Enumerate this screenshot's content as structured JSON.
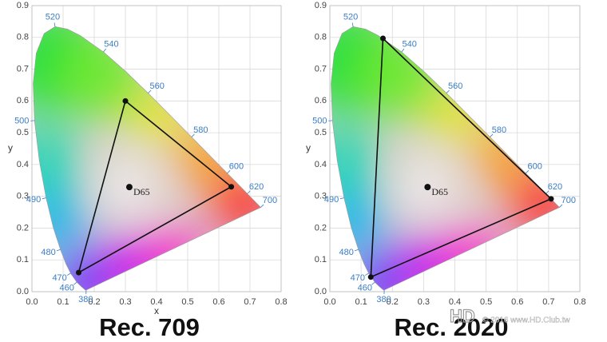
{
  "chart_data": [
    {
      "type": "chromaticity",
      "caption": "Rec. 709",
      "x_label": "x",
      "y_label": "y",
      "xlim": [
        0,
        0.8
      ],
      "ylim": [
        0,
        0.9
      ],
      "xticks": [
        {
          "value": 0,
          "label": "0.0"
        },
        0.1,
        0.2,
        0.3,
        0.4,
        0.5,
        0.6,
        0.7,
        0.8
      ],
      "yticks": [
        {
          "value": 0,
          "label": "0.0"
        },
        0.1,
        0.2,
        0.3,
        0.4,
        0.5,
        0.6,
        0.7,
        0.8,
        0.9
      ],
      "grid": true,
      "locus": {
        "wavelengths": [
          380,
          null,
          null,
          null,
          460,
          470,
          null,
          480,
          null,
          490,
          null,
          500,
          null,
          null,
          null,
          520,
          null,
          null,
          540,
          null,
          560,
          null,
          580,
          null,
          600,
          null,
          620,
          null,
          700
        ],
        "x": [
          0.1741,
          0.1714,
          0.1644,
          0.1566,
          0.144,
          0.1241,
          0.1096,
          0.0913,
          0.0687,
          0.0454,
          0.0235,
          0.0082,
          0.0039,
          0.0139,
          0.0389,
          0.0743,
          0.1142,
          0.1547,
          0.2296,
          0.3016,
          0.3731,
          0.4441,
          0.5125,
          0.5752,
          0.627,
          0.6658,
          0.6915,
          0.719,
          0.7347
        ],
        "y": [
          0.005,
          0.0051,
          0.0109,
          0.0177,
          0.0297,
          0.0578,
          0.0868,
          0.1327,
          0.2007,
          0.295,
          0.4127,
          0.5384,
          0.6548,
          0.7502,
          0.812,
          0.8338,
          0.8262,
          0.8059,
          0.7543,
          0.6923,
          0.6245,
          0.5547,
          0.4866,
          0.4242,
          0.3725,
          0.334,
          0.3083,
          0.2809,
          0.2653
        ]
      },
      "gamut": {
        "x": [
          0.64,
          0.3,
          0.15
        ],
        "y": [
          0.33,
          0.6,
          0.06
        ],
        "color": "#111111"
      },
      "white_point": {
        "label": "D65",
        "x": 0.3127,
        "y": 0.329
      }
    },
    {
      "type": "chromaticity",
      "caption": "Rec. 2020",
      "y_label": "y",
      "xlim": [
        0,
        0.8
      ],
      "ylim": [
        0,
        0.9
      ],
      "xticks": [
        {
          "value": 0,
          "label": "0.0"
        },
        0.1,
        0.2,
        0.3,
        0.4,
        0.5,
        0.6,
        0.7,
        0.8
      ],
      "yticks": [
        {
          "value": 0,
          "label": "0.0"
        },
        0.1,
        0.2,
        0.3,
        0.4,
        0.5,
        0.6,
        0.7,
        0.8,
        0.9
      ],
      "grid": true,
      "locus": {
        "wavelengths": [
          380,
          null,
          null,
          null,
          460,
          470,
          null,
          480,
          null,
          490,
          null,
          500,
          null,
          null,
          null,
          520,
          null,
          null,
          540,
          null,
          560,
          null,
          580,
          null,
          600,
          null,
          620,
          null,
          700
        ],
        "x": [
          0.1741,
          0.1714,
          0.1644,
          0.1566,
          0.144,
          0.1241,
          0.1096,
          0.0913,
          0.0687,
          0.0454,
          0.0235,
          0.0082,
          0.0039,
          0.0139,
          0.0389,
          0.0743,
          0.1142,
          0.1547,
          0.2296,
          0.3016,
          0.3731,
          0.4441,
          0.5125,
          0.5752,
          0.627,
          0.6658,
          0.6915,
          0.719,
          0.7347
        ],
        "y": [
          0.005,
          0.0051,
          0.0109,
          0.0177,
          0.0297,
          0.0578,
          0.0868,
          0.1327,
          0.2007,
          0.295,
          0.4127,
          0.5384,
          0.6548,
          0.7502,
          0.812,
          0.8338,
          0.8262,
          0.8059,
          0.7543,
          0.6923,
          0.6245,
          0.5547,
          0.4866,
          0.4242,
          0.3725,
          0.334,
          0.3083,
          0.2809,
          0.2653
        ]
      },
      "gamut": {
        "x": [
          0.708,
          0.17,
          0.131
        ],
        "y": [
          0.292,
          0.797,
          0.046
        ],
        "color": "#111111"
      },
      "white_point": {
        "label": "D65",
        "x": 0.3127,
        "y": 0.329
      }
    }
  ],
  "watermark": {
    "logo": "HD",
    "text": "© 2016  www.HD.Club.tw"
  }
}
